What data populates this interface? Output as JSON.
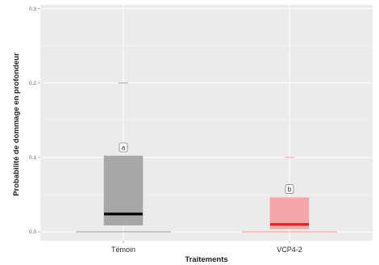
{
  "chart_data": {
    "type": "boxplot",
    "xlabel": "Traitements",
    "ylabel": "Probabilité de dommage en profondeur",
    "ylim": [
      -0.012,
      0.305
    ],
    "yticks": [
      0.0,
      0.1,
      0.2,
      0.3
    ],
    "ytick_labels": [
      "0.0",
      "0.1",
      "0.2",
      "0.3"
    ],
    "grid": true,
    "categories": [
      "Témoin",
      "VCP4-2"
    ],
    "boxes": [
      {
        "category": "Témoin",
        "lower_whisker": 0.0,
        "q1": 0.009,
        "median": 0.024,
        "q3": 0.102,
        "upper_whisker": 0.102,
        "outliers": [
          0.2
        ],
        "fill": "#a7a7a7",
        "median_color": "#000000",
        "annotation": "a"
      },
      {
        "category": "VCP4-2",
        "lower_whisker": 0.0,
        "q1": 0.004,
        "median": 0.01,
        "q3": 0.046,
        "upper_whisker": 0.046,
        "outliers": [
          0.1
        ],
        "fill": "#f4a6a9",
        "median_color": "#ee1c24",
        "annotation": "b"
      }
    ],
    "colors": {
      "panel_bg": "#ebebeb",
      "grid": "#ffffff"
    }
  }
}
